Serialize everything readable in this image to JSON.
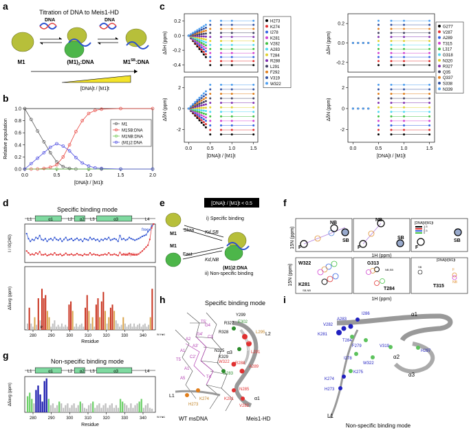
{
  "panels": {
    "a": {
      "letter": "a",
      "title": "Titration of DNA to Meis1-HD",
      "dna_label": "DNA",
      "species": [
        "M1",
        "(M1)",
        "M1"
      ],
      "species_sub": [
        "",
        "2",
        "SB"
      ],
      "species_suffix": [
        "",
        ":DNA",
        ":DNA"
      ],
      "ratio_label": "[DNA]t / [M1]t"
    },
    "b": {
      "letter": "b"
    },
    "c": {
      "letter": "c"
    },
    "d": {
      "letter": "d",
      "title": "Specific binding mode",
      "ylabel_top": "I / I0(240)",
      "ylabel_bottom": "Δδavg (ppm)",
      "xlabel": "Residue",
      "free_label": "free",
      "complex_label": "complex",
      "regions": [
        "L1",
        "α1",
        "L2",
        "α2",
        "L3",
        "α3",
        "L4"
      ],
      "ticks": [
        "280",
        "290",
        "300",
        "310",
        "320",
        "330",
        "340"
      ],
      "w_label": "W-H𝜀1",
      "p_label": "P"
    },
    "e": {
      "letter": "e",
      "condition": "[DNA]t / [M1]t < 0.5",
      "specific": "i) Specific binding",
      "nonspecific": "ii) Non-specific binding",
      "slow": "Slow",
      "fast": "Fast",
      "kd_sb": "Kd,SB",
      "kd_nb": "Kd,NB",
      "m1": "M1",
      "complex": "(M1)2:DNA"
    },
    "f": {
      "letter": "f",
      "xlabel": "1H (ppm)",
      "ylabel": "15N (ppm)",
      "labels_top": [
        "F",
        "NB",
        "SB",
        "F",
        "NB",
        "SB",
        "F",
        "SB"
      ],
      "labels_bottom": [
        "W322",
        "K281",
        "G313",
        "T284",
        "T315"
      ],
      "legend_title": "[DNA]t/[M1]t",
      "legend_values": [
        "1.5",
        "1",
        "0.5",
        "0"
      ],
      "small": [
        "SB,NB",
        "NB,SB",
        "SB",
        "F",
        "NB"
      ]
    },
    "g": {
      "letter": "g",
      "title": "Non-specific binding mode",
      "ylabel": "Δδavg (ppm)",
      "xlabel": "Residue",
      "regions": [
        "L1",
        "α1",
        "L2",
        "α2",
        "L3",
        "α3",
        "L4"
      ],
      "ticks": [
        "280",
        "290",
        "300",
        "310",
        "320",
        "330",
        "340"
      ],
      "w_label": "W-H𝜀1"
    },
    "h": {
      "letter": "h",
      "title": "Specific binding mode",
      "dna_label": "WT msDNA",
      "protein_label": "Meis1-HD",
      "residues": [
        "Y299",
        "E302",
        "L295",
        "R327",
        "R328",
        "Q337",
        "S338",
        "N325",
        "W322",
        "K329",
        "R288",
        "A289",
        "A283",
        "L291",
        "N285",
        "H273",
        "K274",
        "K281",
        "V282",
        "T5'",
        "G4'",
        "A3'",
        "C2'",
        "A1'",
        "T4",
        "A5",
        "G4",
        "C3",
        "A2",
        "A1",
        "T5"
      ],
      "helices": [
        "α3",
        "L2",
        "α1",
        "L1"
      ]
    },
    "i": {
      "letter": "i",
      "title": "Non-specific binding mode",
      "residues": [
        "I286",
        "A283",
        "V282",
        "K281",
        "T284",
        "F279",
        "V319",
        "H297",
        "I278",
        "W322",
        "K275",
        "K274",
        "H273"
      ],
      "helices": [
        "α1",
        "α2",
        "α3",
        "L1"
      ]
    }
  },
  "chart_data": [
    {
      "id": "b",
      "type": "line",
      "title": "",
      "xlabel": "[DNA]t / [M1]t",
      "ylabel": "Relative population",
      "xlim": [
        0,
        2.0
      ],
      "ylim": [
        0,
        1.0
      ],
      "xticks": [
        "0.0",
        "0.5",
        "1.0",
        "1.5",
        "2.0"
      ],
      "yticks": [
        "0.0",
        "0.2",
        "0.4",
        "0.6",
        "0.8",
        "1.0"
      ],
      "series": [
        {
          "name": "M1",
          "color": "#555555",
          "x": [
            0,
            0.1,
            0.2,
            0.3,
            0.4,
            0.5,
            0.6,
            0.7,
            0.8,
            1.0,
            1.2,
            1.5,
            2.0
          ],
          "values": [
            1.0,
            0.82,
            0.63,
            0.45,
            0.27,
            0.12,
            0.04,
            0.01,
            0,
            0,
            0,
            0,
            0
          ]
        },
        {
          "name": "M1SB:DNA",
          "color": "#e8413a",
          "x": [
            0,
            0.1,
            0.2,
            0.3,
            0.4,
            0.5,
            0.6,
            0.7,
            0.8,
            0.9,
            1.0,
            1.1,
            1.2,
            1.5,
            2.0
          ],
          "values": [
            0,
            0,
            0,
            0.01,
            0.03,
            0.07,
            0.2,
            0.4,
            0.62,
            0.8,
            0.92,
            0.97,
            0.99,
            1.0,
            1.0
          ]
        },
        {
          "name": "M1NB:DNA",
          "color": "#6dc74f",
          "x": [
            0,
            0.5,
            1.0,
            1.5,
            2.0
          ],
          "values": [
            0,
            0,
            0,
            0,
            0
          ]
        },
        {
          "name": "(M1)2:DNA",
          "color": "#4a4ae0",
          "x": [
            0,
            0.1,
            0.2,
            0.3,
            0.4,
            0.5,
            0.6,
            0.7,
            0.8,
            0.9,
            1.0,
            1.1,
            1.2,
            1.5,
            2.0
          ],
          "values": [
            0,
            0.09,
            0.18,
            0.27,
            0.36,
            0.42,
            0.38,
            0.3,
            0.19,
            0.1,
            0.05,
            0.02,
            0.01,
            0,
            0
          ]
        }
      ]
    },
    {
      "id": "c",
      "type": "scatter",
      "xlabel": "[DNA]t / [M1]t",
      "ylabel_H": "ΔδH (ppm)",
      "ylabel_N": "ΔδN (ppm)",
      "xticks": [
        "0.0",
        "0.5",
        "1.0",
        "1.5"
      ],
      "left_yticks_H": [
        "0.2",
        "0.0",
        "-0.2",
        "-0.4"
      ],
      "left_yticks_N": [
        "2",
        "0",
        "-2"
      ],
      "right_yticks_H": [
        "0.2",
        "0.0",
        "-0.2"
      ],
      "right_yticks_N": [
        "2",
        "0",
        "-2"
      ],
      "left_legend": [
        "H273",
        "K274",
        "I278",
        "K281",
        "V282",
        "A283",
        "T284",
        "R288",
        "L291",
        "F292",
        "V319",
        "W322"
      ],
      "left_colors": [
        "#000000",
        "#e03030",
        "#3060e0",
        "#d040d0",
        "#40c040",
        "#50d8f0",
        "#e0d030",
        "#8030b0",
        "#404060",
        "#e08020",
        "#3050a0",
        "#50a0f0"
      ],
      "right_legend": [
        "G277",
        "V287",
        "A289",
        "T315",
        "L317",
        "G318",
        "N320",
        "R327",
        "Q35",
        "Q337",
        "S338",
        "N339"
      ],
      "right_colors": [
        "#000000",
        "#e03030",
        "#3060e0",
        "#d040d0",
        "#40c040",
        "#50d8f0",
        "#e0d030",
        "#8030b0",
        "#404060",
        "#e08020",
        "#3050a0",
        "#50a0f0"
      ]
    },
    {
      "id": "d",
      "type": "bar",
      "values_top_free": [
        0.75,
        0.62,
        0.55,
        0.6,
        0.58,
        0.65,
        0.62,
        0.7,
        0.6,
        0.58,
        0.62,
        0.55,
        0.6,
        0.62,
        0.58,
        0.65,
        0.6,
        0.58,
        0.62,
        0.55,
        0.6,
        0.65,
        0.58,
        0.6,
        0.62,
        0.57,
        0.6,
        0.63,
        0.58,
        0.6,
        0.55,
        0.62,
        0.6,
        0.58,
        0.65,
        0.6,
        0.62,
        0.58,
        0.6,
        0.55,
        0.6,
        0.58,
        0.62,
        0.6,
        0.65,
        0.58,
        0.6,
        0.62,
        0.6,
        0.55,
        0.7,
        0.6,
        0.62,
        0.58,
        0.6,
        0.65,
        0.62,
        0.6,
        0.58,
        0.6,
        0.62,
        0.65,
        0.68,
        0.7,
        0.72,
        0.8,
        0.85,
        0.95,
        1.0
      ],
      "values_top_complex": [
        0.3,
        0.25,
        0.2,
        0.22,
        0.2,
        0.25,
        0.22,
        0.28,
        0.2,
        0.2,
        0.22,
        0.18,
        0.2,
        0.22,
        0.2,
        0.25,
        0.2,
        0.2,
        0.22,
        0.18,
        0.2,
        0.24,
        0.2,
        0.2,
        0.22,
        0.19,
        0.2,
        0.23,
        0.2,
        0.2,
        0.18,
        0.22,
        0.2,
        0.2,
        0.25,
        0.2,
        0.22,
        0.2,
        0.2,
        0.18,
        0.2,
        0.2,
        0.22,
        0.2,
        0.25,
        0.2,
        0.2,
        0.22,
        0.2,
        0.18,
        0.26,
        0.2,
        0.22,
        0.2,
        0.2,
        0.24,
        0.22,
        0.2,
        0.2,
        0.2,
        0.22,
        0.26,
        0.3,
        0.35,
        0.4,
        0.45,
        0.6,
        0.9,
        1.0
      ],
      "bars": [
        0.1,
        0.35,
        0.1,
        0.05,
        0.2,
        0.08,
        0.5,
        0.15,
        0.65,
        0.5,
        0.55,
        0.3,
        0.2,
        0.05,
        0.1,
        0.15,
        0.05,
        0.08,
        0.05,
        0.1,
        0.05,
        0.08,
        0.05,
        0.4,
        0.45,
        0.3,
        0.05,
        0.1,
        0.05,
        0.08,
        0.1,
        0.05,
        0.35,
        0.55,
        0.3,
        0.1,
        0.2,
        0.05,
        0.4,
        0.5,
        0.2,
        0.45,
        0.6,
        0.3,
        0.1,
        0.2,
        0.35,
        0.4,
        0.3,
        0.15,
        0.1,
        0.05,
        0.08,
        0.2,
        0.1,
        0.05,
        0.08,
        0.1,
        0.05,
        0.1,
        0.05,
        0.08,
        0.1,
        0.05,
        0.08,
        0.1,
        0.05,
        0.08,
        0.2,
        0.65
      ]
    },
    {
      "id": "g",
      "type": "bar",
      "ylim": [
        0,
        0.4
      ],
      "bars": [
        0.18,
        0.22,
        0.15,
        0.1,
        0.25,
        0.3,
        0.2,
        0.12,
        0.35,
        0.38,
        0.15,
        0.08,
        0.1,
        0.05,
        0.08,
        0.12,
        0.1,
        0.05,
        0.08,
        0.1,
        0.05,
        0.08,
        0.1,
        0.05,
        0.08,
        0.12,
        0.1,
        0.05,
        0.04,
        0.08,
        0.1,
        0.12,
        0.05,
        0.08,
        0.1,
        0.05,
        0.08,
        0.1,
        0.05,
        0.08,
        0.1,
        0.05,
        0.08,
        0.05,
        0.15,
        0.12,
        0.1,
        0.08,
        0.05,
        0.1,
        0.05,
        0.08,
        0.1,
        0.12,
        0.15,
        0.05,
        0.08,
        0.1,
        0.05,
        0.04
      ]
    }
  ]
}
